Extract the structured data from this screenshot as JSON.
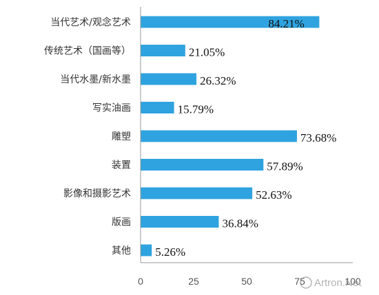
{
  "chart_data": {
    "type": "bar",
    "orientation": "horizontal",
    "categories": [
      "当代艺术/观念艺术",
      "传统艺术（国画等）",
      "当代水墨/新水墨",
      "写实油画",
      "雕塑",
      "装置",
      "影像和摄影艺术",
      "版画",
      "其他"
    ],
    "values": [
      84.21,
      21.05,
      26.32,
      15.79,
      73.68,
      57.89,
      52.63,
      36.84,
      5.26
    ],
    "value_labels": [
      "84.21%",
      "21.05%",
      "26.32%",
      "15.79%",
      "73.68%",
      "57.89%",
      "52.63%",
      "36.84%",
      "5.26%"
    ],
    "xlim": [
      0,
      100
    ],
    "x_ticks": [
      0,
      25,
      50,
      75,
      100
    ],
    "grid": false,
    "bar_color": "#2fa3df",
    "title": "",
    "xlabel": "",
    "ylabel": ""
  },
  "watermark": "Artron.Net"
}
